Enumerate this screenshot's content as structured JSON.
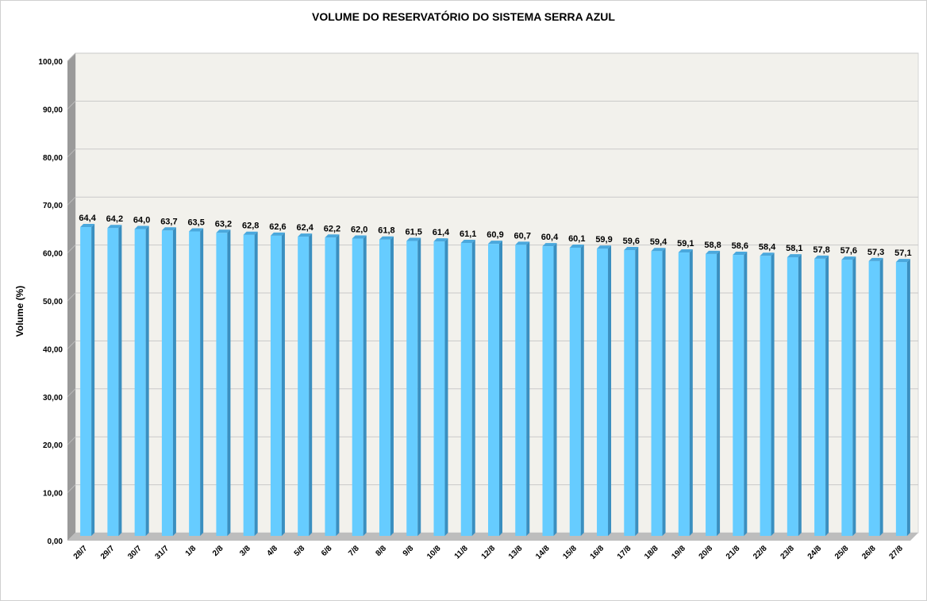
{
  "chart_data": {
    "type": "bar",
    "title": "VOLUME DO RESERVATÓRIO DO SISTEMA SERRA AZUL",
    "ylabel": "Volume (%)",
    "xlabel": "",
    "ylim": [
      0,
      100
    ],
    "yticks": [
      "0,00",
      "10,00",
      "20,00",
      "30,00",
      "40,00",
      "50,00",
      "60,00",
      "70,00",
      "80,00",
      "90,00",
      "100,00"
    ],
    "grid": true,
    "categories": [
      "28/7",
      "29/7",
      "30/7",
      "31/7",
      "1/8",
      "2/8",
      "3/8",
      "4/8",
      "5/8",
      "6/8",
      "7/8",
      "8/8",
      "9/8",
      "10/8",
      "11/8",
      "12/8",
      "13/8",
      "14/8",
      "15/8",
      "16/8",
      "17/8",
      "18/8",
      "19/8",
      "20/8",
      "21/8",
      "22/8",
      "23/8",
      "24/8",
      "25/8",
      "26/8",
      "27/8"
    ],
    "values": [
      64.4,
      64.2,
      64.0,
      63.7,
      63.5,
      63.2,
      62.8,
      62.6,
      62.4,
      62.2,
      62.0,
      61.8,
      61.5,
      61.4,
      61.1,
      60.9,
      60.7,
      60.4,
      60.1,
      59.9,
      59.6,
      59.4,
      59.1,
      58.8,
      58.6,
      58.4,
      58.1,
      57.8,
      57.6,
      57.3,
      57.1
    ],
    "data_labels": [
      "64,4",
      "64,2",
      "64,0",
      "63,7",
      "63,5",
      "63,2",
      "62,8",
      "62,6",
      "62,4",
      "62,2",
      "62,0",
      "61,8",
      "61,5",
      "61,4",
      "61,1",
      "60,9",
      "60,7",
      "60,4",
      "60,1",
      "59,9",
      "59,6",
      "59,4",
      "59,1",
      "58,8",
      "58,6",
      "58,4",
      "58,1",
      "57,8",
      "57,6",
      "57,3",
      "57,1"
    ],
    "colors": {
      "bar_front": "#66ccff",
      "bar_side": "#3a8fc0",
      "bar_top": "#4aa8dd",
      "plot_bg": "#f2f1ec",
      "wall_side": "#9a9a9a",
      "floor": "#bdbdbd",
      "grid": "#c9c9c9"
    }
  }
}
